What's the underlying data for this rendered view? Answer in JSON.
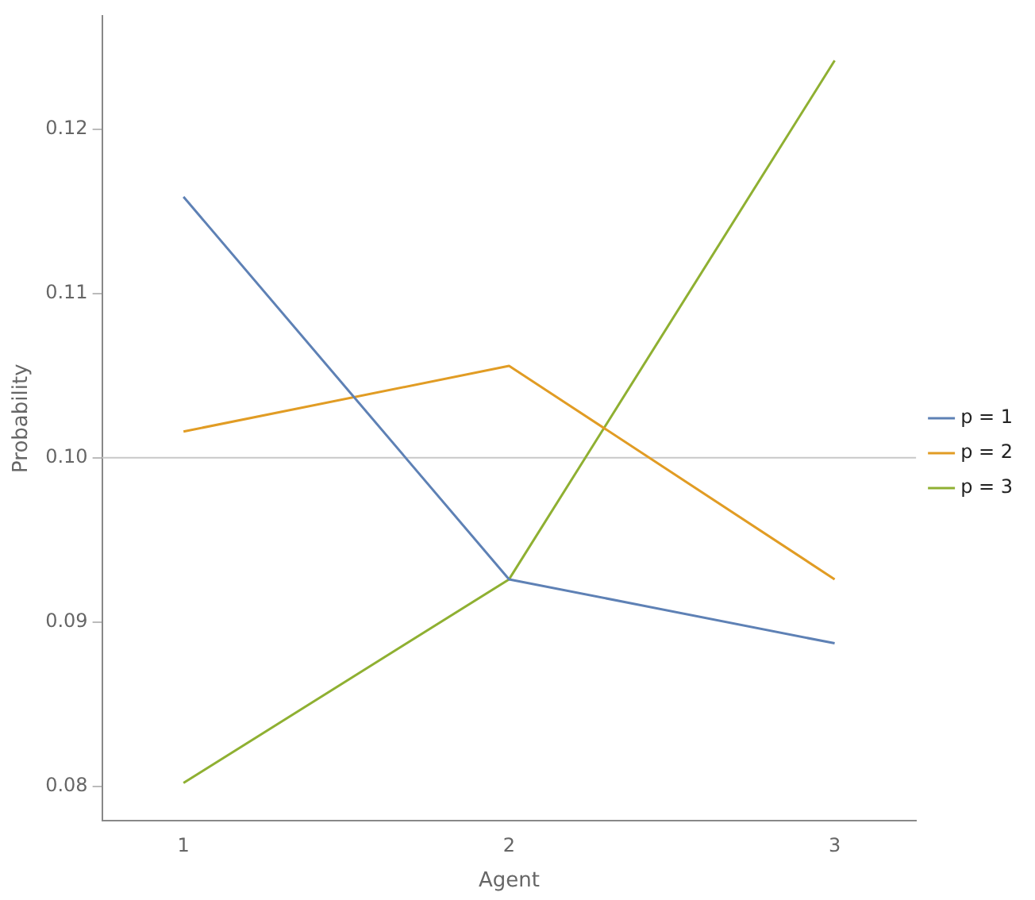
{
  "chart_data": {
    "type": "line",
    "xlabel": "Agent",
    "ylabel": "Probability",
    "x": [
      1,
      2,
      3
    ],
    "series": [
      {
        "name": "p = 1",
        "color": "#5e81b5",
        "values": [
          0.1159,
          0.0926,
          0.0887
        ]
      },
      {
        "name": "p = 2",
        "color": "#e19c24",
        "values": [
          0.1016,
          0.1056,
          0.0926
        ]
      },
      {
        "name": "p = 3",
        "color": "#8fb032",
        "values": [
          0.0802,
          0.0926,
          0.1242
        ]
      }
    ],
    "xlim": [
      0.75,
      3.25
    ],
    "xticks": [
      1,
      2,
      3
    ],
    "ylim": [
      0.0779,
      0.1269
    ],
    "yticks": [
      0.08,
      0.09,
      {
        "value": 0.1,
        "label": "0.10"
      },
      0.11,
      0.12
    ],
    "ref_lines": [
      {
        "axis": "y",
        "value": 0.1,
        "color": "#c8c8c8"
      }
    ],
    "grid": false,
    "legend": "right",
    "marker": "none",
    "line_style": "solid"
  }
}
